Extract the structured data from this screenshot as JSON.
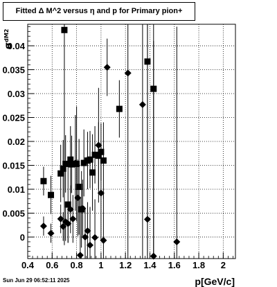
{
  "title": "Fitted Δ M^2 versus η and p for Primary pion+",
  "timestamp": "Sun Jun 29 06:52:11 2025",
  "chart_data": {
    "type": "scatter",
    "xlabel": "p[GeV/c]",
    "ylabel": "σ_{dM2}",
    "xlim": [
      0.4,
      2.1
    ],
    "ylim": [
      -0.0045,
      0.0445
    ],
    "xticks": [
      0.4,
      0.6,
      0.8,
      1,
      1.2,
      1.4,
      1.6,
      1.8,
      2
    ],
    "xtick_labels": [
      "0.4",
      "0.6",
      "0.8",
      "1",
      "1.2",
      "1.4",
      "1.6",
      "1.8",
      "2"
    ],
    "yticks": [
      0,
      0.005,
      0.01,
      0.015,
      0.02,
      0.025,
      0.03,
      0.035,
      0.04
    ],
    "ytick_labels": [
      "0",
      "0.005",
      "0.01",
      "0.015",
      "0.02",
      "0.025",
      "0.03",
      "0.035",
      "0.04"
    ],
    "grid": true,
    "series": [
      {
        "marker": "square",
        "color": "#000000",
        "points": [
          {
            "x": 0.53,
            "y": 0.0117,
            "err": 0.003
          },
          {
            "x": 0.59,
            "y": 0.0088,
            "err": 0.004
          },
          {
            "x": 0.67,
            "y": 0.0133,
            "err": 0.006
          },
          {
            "x": 0.69,
            "y": 0.0143,
            "err": 0.006
          },
          {
            "x": 0.7,
            "y": 0.0433,
            "err": 0.045
          },
          {
            "x": 0.71,
            "y": 0.0153,
            "err": 0.006
          },
          {
            "x": 0.73,
            "y": 0.0068,
            "err": 0.008
          },
          {
            "x": 0.75,
            "y": 0.0162,
            "err": 0.007
          },
          {
            "x": 0.76,
            "y": 0.0152,
            "err": 0.006
          },
          {
            "x": 0.8,
            "y": 0.0153,
            "err": 0.012
          },
          {
            "x": 0.82,
            "y": 0.0105,
            "err": 0.01
          },
          {
            "x": 0.84,
            "y": 0.0058,
            "err": 0.008
          },
          {
            "x": 0.86,
            "y": 0.0155,
            "err": 0.007
          },
          {
            "x": 0.89,
            "y": 0.016,
            "err": 0.006
          },
          {
            "x": 0.91,
            "y": 0.0162,
            "err": 0.006
          },
          {
            "x": 0.93,
            "y": 0.0135,
            "err": 0.008
          },
          {
            "x": 0.95,
            "y": 0.0172,
            "err": 0.006
          },
          {
            "x": 0.98,
            "y": 0.017,
            "err": 0.007
          },
          {
            "x": 1.0,
            "y": 0.0178,
            "err": 0.006
          },
          {
            "x": 1.02,
            "y": 0.016,
            "err": 0.008
          },
          {
            "x": 1.15,
            "y": 0.0268,
            "err": 0.006
          },
          {
            "x": 1.38,
            "y": 0.0367,
            "err": 0.045
          },
          {
            "x": 1.43,
            "y": 0.031,
            "err": 0.045
          }
        ]
      },
      {
        "marker": "diamond",
        "color": "#000000",
        "points": [
          {
            "x": 0.53,
            "y": 0.0023,
            "err": 0.002
          },
          {
            "x": 0.59,
            "y": 0.0008,
            "err": 0.002
          },
          {
            "x": 0.67,
            "y": 0.0038,
            "err": 0.003
          },
          {
            "x": 0.69,
            "y": 0.0022,
            "err": 0.003
          },
          {
            "x": 0.71,
            "y": 0.0032,
            "err": 0.004
          },
          {
            "x": 0.73,
            "y": 0.0028,
            "err": 0.004
          },
          {
            "x": 0.75,
            "y": 0.0058,
            "err": 0.005
          },
          {
            "x": 0.77,
            "y": 0.0038,
            "err": 0.005
          },
          {
            "x": 0.79,
            "y": 0.0155,
            "err": 0.01
          },
          {
            "x": 0.81,
            "y": 0.0082,
            "err": 0.008
          },
          {
            "x": 0.83,
            "y": -0.0038,
            "err": 0.012
          },
          {
            "x": 0.85,
            "y": 0.006,
            "err": 0.006
          },
          {
            "x": 0.87,
            "y": 0.0,
            "err": 0.006
          },
          {
            "x": 0.89,
            "y": 0.0013,
            "err": 0.006
          },
          {
            "x": 0.91,
            "y": -0.0017,
            "err": 0.008
          },
          {
            "x": 0.95,
            "y": -0.0001,
            "err": 0.008
          },
          {
            "x": 0.98,
            "y": 0.0192,
            "err": 0.012
          },
          {
            "x": 1.0,
            "y": 0.0092,
            "err": 0.01
          },
          {
            "x": 1.02,
            "y": -0.0007,
            "err": 0.01
          },
          {
            "x": 1.05,
            "y": 0.0355,
            "err": 0.006
          },
          {
            "x": 1.22,
            "y": 0.0343,
            "err": 0.045
          },
          {
            "x": 1.34,
            "y": 0.0277,
            "err": 0.045
          },
          {
            "x": 1.38,
            "y": 0.0037,
            "err": 0.045
          },
          {
            "x": 1.43,
            "y": -0.004,
            "err": 0.045
          },
          {
            "x": 1.62,
            "y": -0.001,
            "err": 0.045
          }
        ]
      }
    ]
  }
}
